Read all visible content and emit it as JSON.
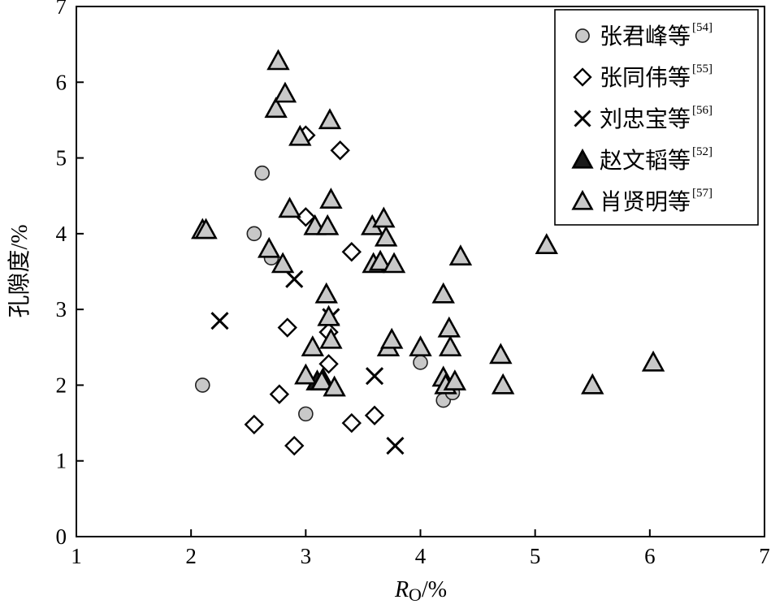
{
  "chart_data": {
    "type": "scatter",
    "xlabel": "R",
    "xlabel_sub": "O",
    "xlabel_unit": "/%",
    "ylabel": "孔隙度/%",
    "xlim": [
      1,
      7
    ],
    "ylim": [
      0,
      7
    ],
    "xticks": [
      "1",
      "2",
      "3",
      "4",
      "5",
      "6",
      "7"
    ],
    "yticks": [
      "0",
      "1",
      "2",
      "3",
      "4",
      "5",
      "6",
      "7"
    ],
    "legend_position": "top-right",
    "grid": false,
    "series": [
      {
        "name": "张君峰等",
        "ref": "[54]",
        "marker": "circle",
        "color": "#c8c8c8",
        "x": [
          2.1,
          2.55,
          2.62,
          2.7,
          3.0,
          4.0,
          4.2,
          4.28
        ],
        "y": [
          2.0,
          4.0,
          4.8,
          3.68,
          1.62,
          2.3,
          1.8,
          1.9
        ]
      },
      {
        "name": "张同伟等",
        "ref": "[55]",
        "marker": "diamond",
        "color": "#ffffff",
        "x": [
          2.55,
          2.77,
          2.84,
          2.9,
          3.0,
          3.0,
          3.2,
          3.2,
          3.3,
          3.4,
          3.4,
          3.6
        ],
        "y": [
          1.48,
          1.88,
          2.76,
          1.2,
          4.22,
          5.3,
          2.28,
          2.7,
          5.1,
          3.76,
          1.5,
          1.6
        ]
      },
      {
        "name": "刘忠宝等",
        "ref": "[56]",
        "marker": "x",
        "color": "#000000",
        "x": [
          2.25,
          2.9,
          3.22,
          3.6,
          3.78
        ],
        "y": [
          2.85,
          3.4,
          2.9,
          2.12,
          1.2
        ]
      },
      {
        "name": "赵文韬等",
        "ref": "[52]",
        "marker": "triangle",
        "color": "#1a1a1a",
        "x": [
          3.1,
          3.15
        ],
        "y": [
          2.05,
          2.08
        ]
      },
      {
        "name": "肖贤明等",
        "ref": "[57]",
        "marker": "triangle",
        "color": "#c8c8c8",
        "x": [
          2.1,
          2.13,
          2.68,
          2.74,
          2.76,
          2.8,
          2.82,
          2.86,
          2.95,
          3.0,
          3.06,
          3.08,
          3.14,
          3.18,
          3.19,
          3.2,
          3.21,
          3.22,
          3.22,
          3.25,
          3.58,
          3.59,
          3.65,
          3.68,
          3.7,
          3.72,
          3.75,
          3.77,
          4.0,
          4.2,
          4.2,
          4.22,
          4.25,
          4.26,
          4.3,
          4.35,
          4.7,
          4.72,
          5.1,
          5.5,
          6.03
        ],
        "y": [
          4.05,
          4.05,
          3.8,
          5.65,
          6.28,
          3.6,
          5.85,
          4.33,
          5.28,
          2.13,
          2.5,
          4.1,
          2.05,
          3.2,
          4.1,
          2.9,
          5.5,
          4.45,
          2.6,
          1.97,
          4.1,
          3.6,
          3.63,
          4.2,
          3.95,
          2.5,
          2.6,
          3.6,
          2.5,
          3.2,
          2.1,
          2.0,
          2.75,
          2.5,
          2.05,
          3.7,
          2.4,
          2.0,
          3.85,
          2.0,
          2.3
        ]
      }
    ]
  }
}
